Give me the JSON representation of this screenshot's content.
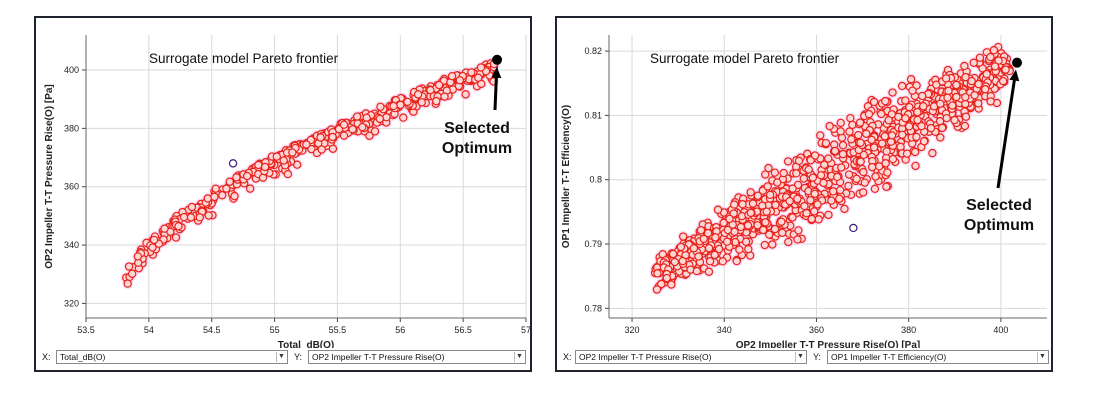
{
  "colors": {
    "point_fill": "#ffd6d6",
    "point_stroke": "#e8231c",
    "halo": "#f7c8f0",
    "optimum": "#000000",
    "grid": "#d9d9d9",
    "outlier_stroke": "#3a1a7a"
  },
  "chart_data": [
    {
      "type": "scatter",
      "title": "Surrogate model Pareto frontier",
      "xlabel": "Total_dB(O)",
      "ylabel": "OP2 Impeller T-T Pressure Rise(O) [Pa]",
      "xlim": [
        53.5,
        57
      ],
      "ylim": [
        315,
        412
      ],
      "xticks": [
        "53.5",
        "54",
        "54.5",
        "55",
        "55.5",
        "56",
        "56.5",
        "57"
      ],
      "yticks": [
        "320",
        "340",
        "360",
        "380",
        "400"
      ],
      "grid": true,
      "frontier": {
        "x_start": 53.8,
        "x_end": 56.75,
        "y_start": 327,
        "y_end": 403,
        "power": 0.62,
        "spread": 4
      },
      "point_count": 420,
      "outlier": {
        "x": 54.67,
        "y": 368
      },
      "optimum": {
        "x": 56.77,
        "y": 403.5
      },
      "annotation": [
        "Selected",
        "Optimum"
      ],
      "selector": {
        "x_label": "X:",
        "x_value": "Total_dB(O)",
        "y_label": "Y:",
        "y_value": "OP2 Impeller T-T Pressure Rise(O)"
      }
    },
    {
      "type": "scatter",
      "title": "Surrogate model Pareto frontier",
      "xlabel": "OP2 Impeller T-T Pressure Rise(O) [Pa]",
      "ylabel": "OP1 Impeller T-T Efficiency(O)",
      "xlim": [
        315,
        410
      ],
      "ylim": [
        0.7785,
        0.8225
      ],
      "xticks": [
        "320",
        "340",
        "360",
        "380",
        "400"
      ],
      "yticks": [
        "0.78",
        "0.79",
        "0.8",
        "0.81",
        "0.82"
      ],
      "grid": true,
      "band": {
        "x_start": 325,
        "x_end": 402,
        "y_start": 0.785,
        "y_end": 0.8175,
        "half_width_start": 0.002,
        "half_width_mid": 0.0065,
        "half_width_end": 0.0035
      },
      "point_count": 1000,
      "outlier": {
        "x": 368,
        "y": 0.7925
      },
      "optimum": {
        "x": 403.5,
        "y": 0.8182
      },
      "annotation": [
        "Selected",
        "Optimum"
      ],
      "selector": {
        "x_label": "X:",
        "x_value": "OP2 Impeller T-T Pressure Rise(O)",
        "y_label": "Y:",
        "y_value": "OP1 Impeller T-T Efficiency(O)"
      }
    }
  ]
}
